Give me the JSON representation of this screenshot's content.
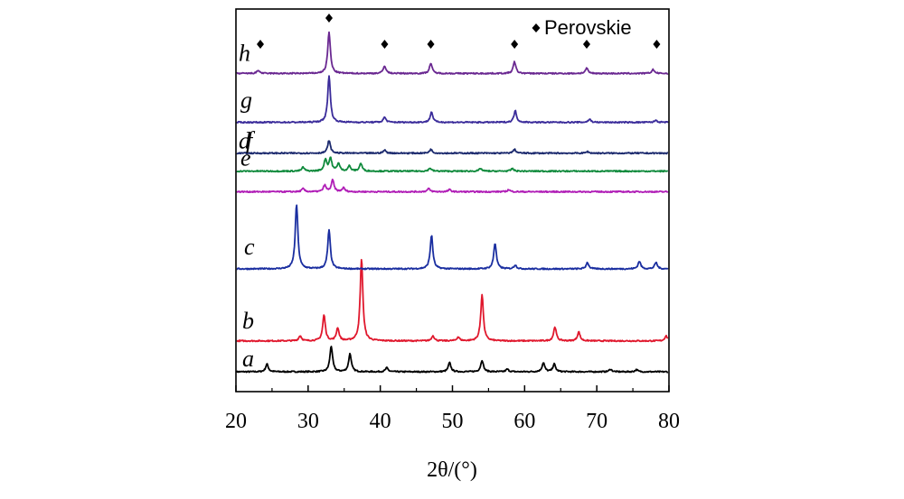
{
  "chart_data": {
    "type": "line",
    "title": "",
    "xlabel": "2θ/(°)",
    "ylabel": "",
    "xlim": [
      20,
      80
    ],
    "xticks": [
      20,
      30,
      40,
      50,
      60,
      70,
      80
    ],
    "yticks": false,
    "grid": false,
    "legend": {
      "marker": "diamond",
      "label": "Perovskie",
      "placement": "top-right"
    },
    "peak_marker_positions": [
      23.2,
      32.9,
      40.6,
      47.0,
      58.6,
      68.6,
      78.3
    ],
    "series": [
      {
        "label": "a",
        "color": "#000000",
        "baseline": 0.0,
        "peaks": [
          [
            24.3,
            0.3
          ],
          [
            33.2,
            1.0
          ],
          [
            35.8,
            0.7
          ],
          [
            40.9,
            0.15
          ],
          [
            49.6,
            0.35
          ],
          [
            54.1,
            0.45
          ],
          [
            57.6,
            0.1
          ],
          [
            62.6,
            0.35
          ],
          [
            64.1,
            0.3
          ],
          [
            71.9,
            0.1
          ],
          [
            75.5,
            0.08
          ]
        ]
      },
      {
        "label": "b",
        "color": "#e0182d",
        "baseline": 1.2,
        "peaks": [
          [
            28.9,
            0.2
          ],
          [
            32.2,
            1.0
          ],
          [
            34.1,
            0.5
          ],
          [
            37.4,
            3.2
          ],
          [
            47.3,
            0.2
          ],
          [
            50.8,
            0.15
          ],
          [
            54.1,
            1.8
          ],
          [
            64.2,
            0.55
          ],
          [
            67.5,
            0.35
          ],
          [
            79.6,
            0.2
          ]
        ]
      },
      {
        "label": "c",
        "color": "#1a2ea0",
        "baseline": 4.0,
        "peaks": [
          [
            28.4,
            2.5
          ],
          [
            32.9,
            1.5
          ],
          [
            47.1,
            1.3
          ],
          [
            55.9,
            1.0
          ],
          [
            58.7,
            0.15
          ],
          [
            68.7,
            0.25
          ],
          [
            75.9,
            0.3
          ],
          [
            78.2,
            0.25
          ]
        ]
      },
      {
        "label": "d",
        "color": "#b01db6",
        "baseline": 7.0,
        "peaks": [
          [
            29.3,
            0.12
          ],
          [
            32.3,
            0.25
          ],
          [
            33.4,
            0.45
          ],
          [
            34.9,
            0.15
          ],
          [
            46.7,
            0.12
          ],
          [
            49.6,
            0.08
          ],
          [
            57.8,
            0.08
          ]
        ]
      },
      {
        "label": "e",
        "color": "#0f8a3c",
        "baseline": 7.8,
        "peaks": [
          [
            29.3,
            0.15
          ],
          [
            32.4,
            0.45
          ],
          [
            33.1,
            0.5
          ],
          [
            34.2,
            0.3
          ],
          [
            35.7,
            0.2
          ],
          [
            37.3,
            0.3
          ],
          [
            46.9,
            0.12
          ],
          [
            53.9,
            0.1
          ],
          [
            58.3,
            0.1
          ]
        ]
      },
      {
        "label": "f",
        "color": "#1c2a6e",
        "baseline": 8.5,
        "peaks": [
          [
            32.9,
            0.5
          ],
          [
            40.6,
            0.12
          ],
          [
            47.0,
            0.15
          ],
          [
            58.6,
            0.15
          ],
          [
            68.7,
            0.06
          ]
        ]
      },
      {
        "label": "g",
        "color": "#3a2b9a",
        "baseline": 9.7,
        "peaks": [
          [
            32.9,
            1.8
          ],
          [
            40.6,
            0.2
          ],
          [
            47.1,
            0.4
          ],
          [
            58.7,
            0.45
          ],
          [
            69.0,
            0.12
          ],
          [
            78.2,
            0.08
          ]
        ]
      },
      {
        "label": "h",
        "color": "#6a2891",
        "baseline": 11.6,
        "peaks": [
          [
            23.1,
            0.12
          ],
          [
            32.9,
            1.6
          ],
          [
            40.6,
            0.3
          ],
          [
            47.0,
            0.4
          ],
          [
            58.6,
            0.45
          ],
          [
            68.6,
            0.2
          ],
          [
            77.8,
            0.15
          ]
        ]
      }
    ]
  }
}
